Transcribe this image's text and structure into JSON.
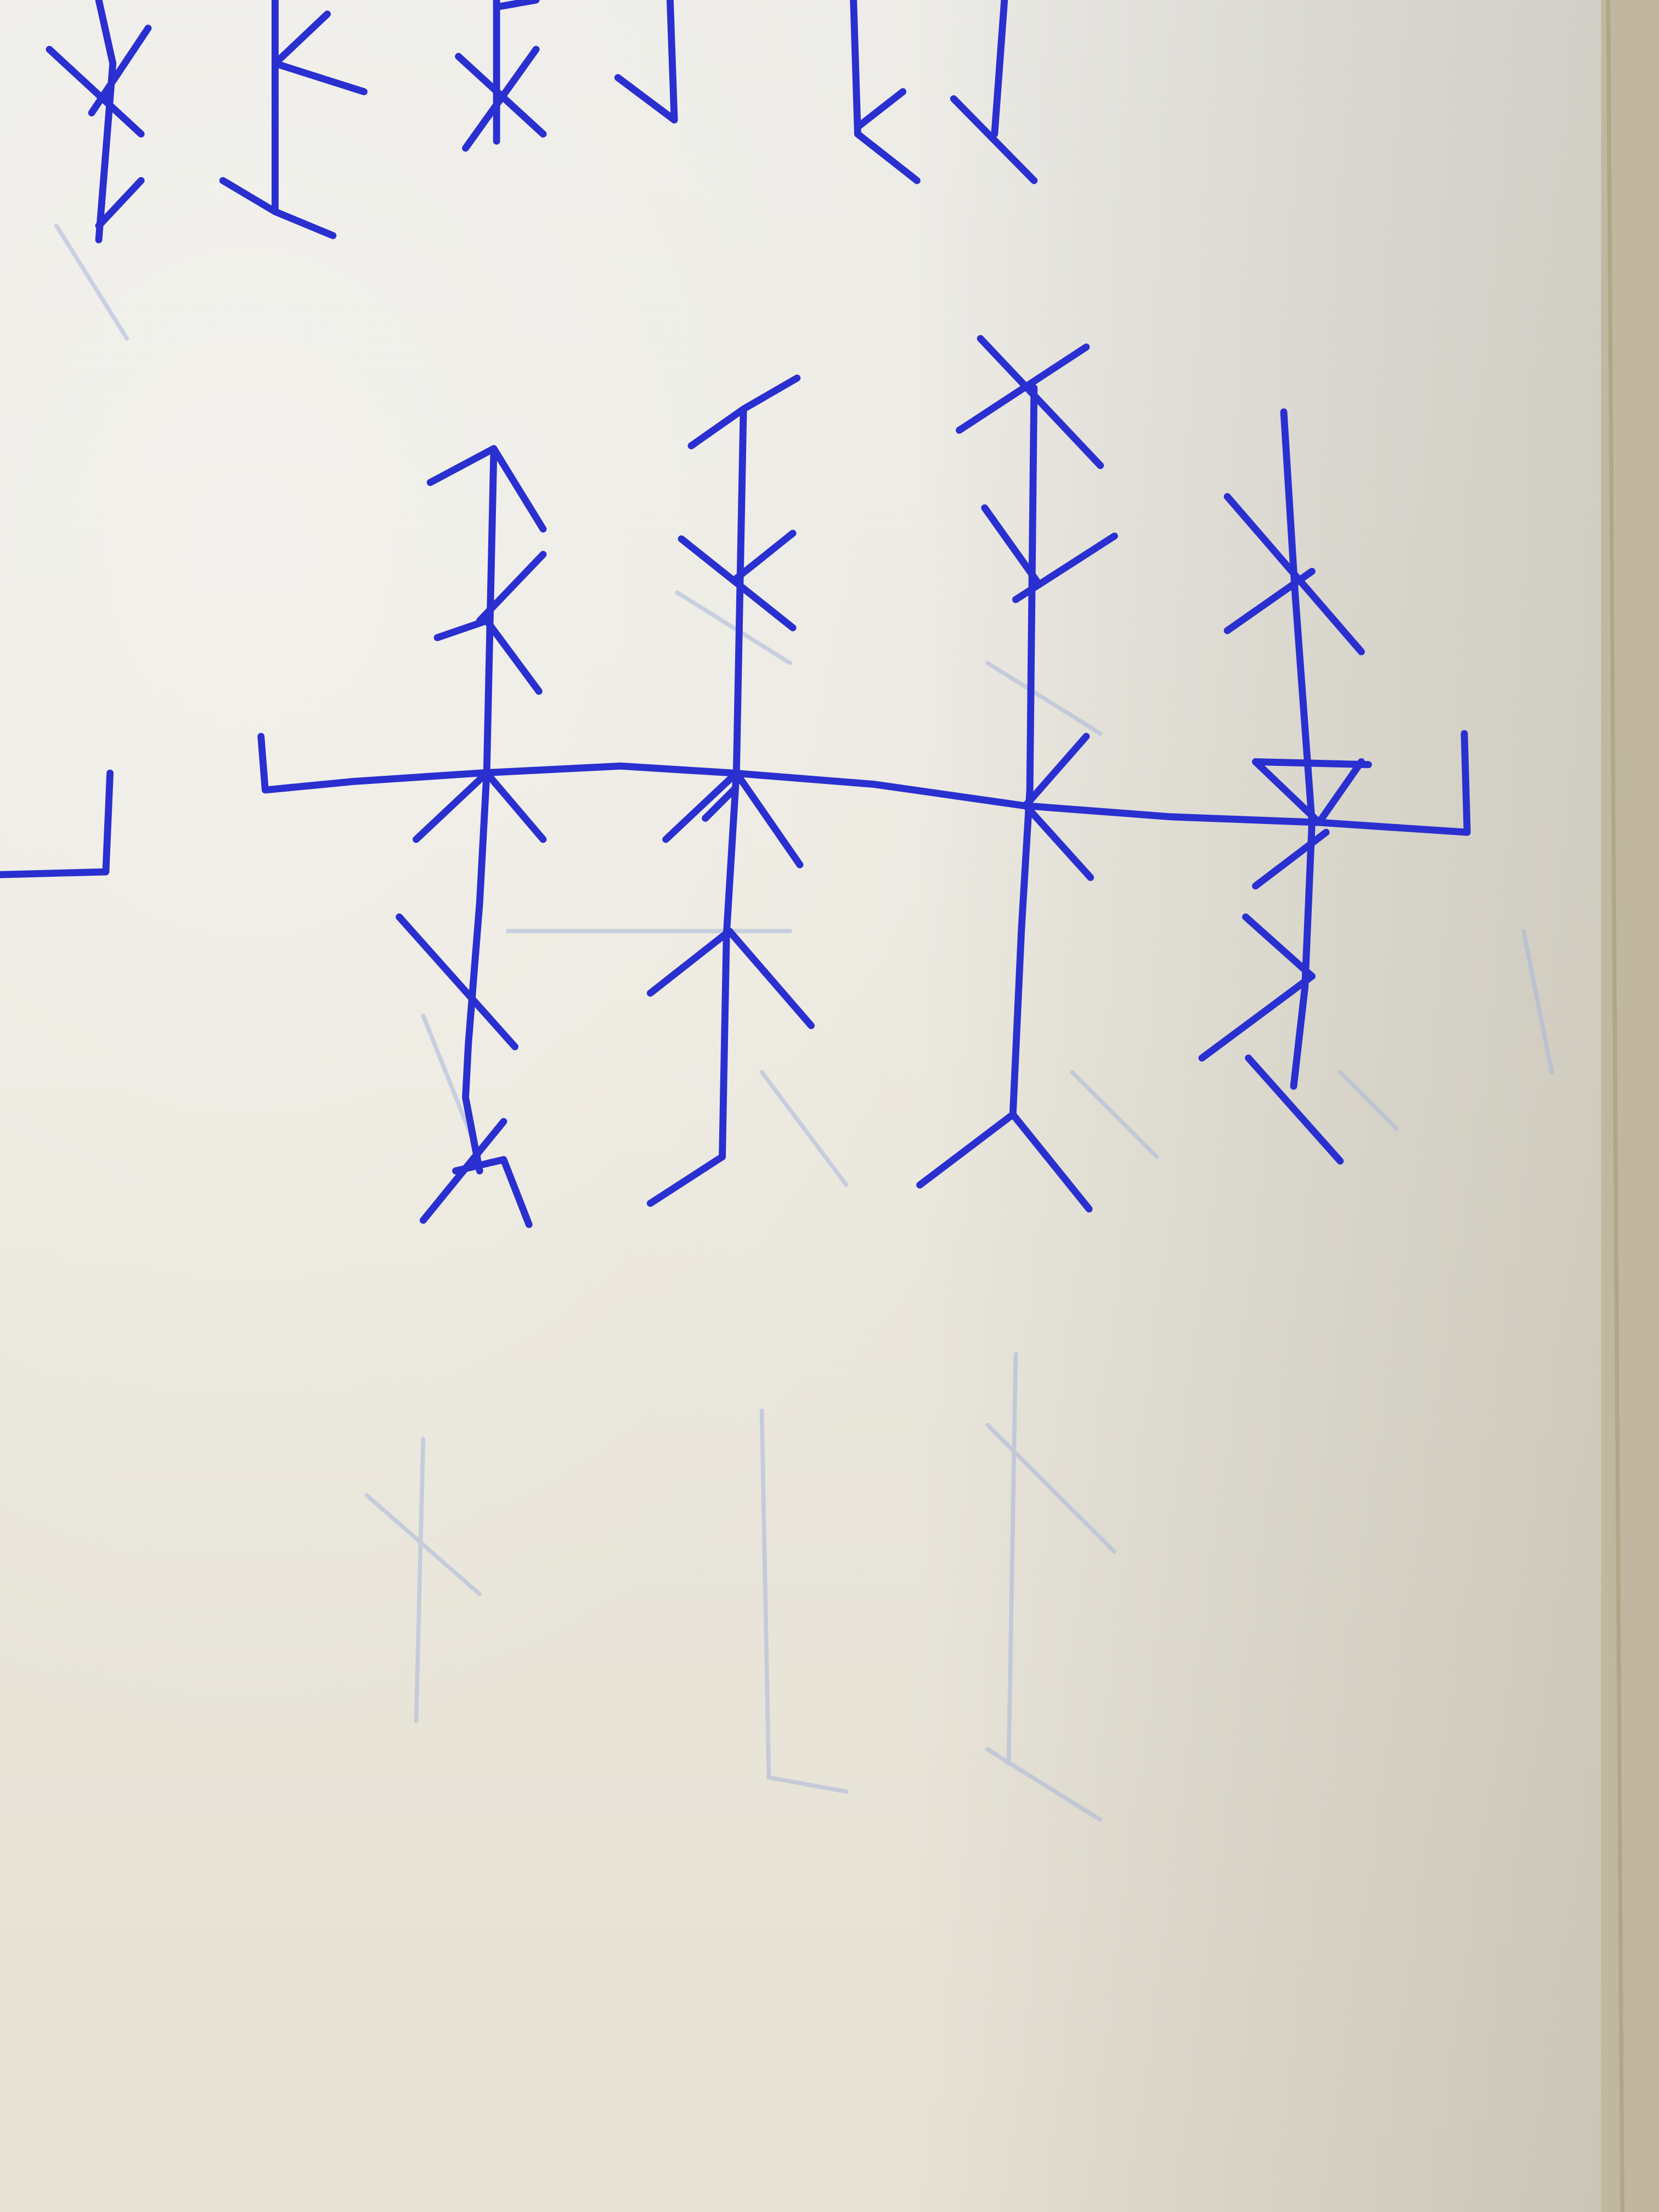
{
  "colors": {
    "ink": "#2a2fd0",
    "ghost_ink": "#9fb0d6",
    "paper": "#ebe8de",
    "paper_shadow": "#c9c2b0"
  },
  "scene": {
    "subject": "handwritten-rune-glyphs",
    "medium": "blue-ballpoint-pen-on-notebook-paper"
  }
}
